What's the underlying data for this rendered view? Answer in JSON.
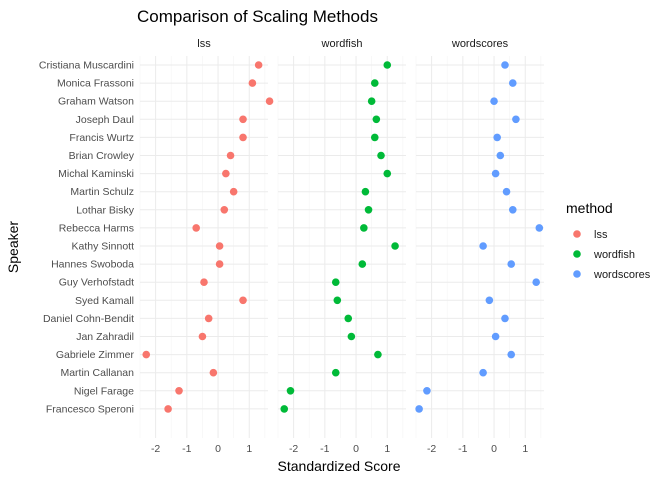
{
  "chart_data": {
    "type": "scatter",
    "title": "Comparison of Scaling Methods",
    "xlabel": "Standardized Score",
    "ylabel": "Speaker",
    "xlim": [
      -2.5,
      1.6
    ],
    "xticks": [
      -2,
      -1,
      0,
      1
    ],
    "xtick_labels": [
      "-2",
      "-1",
      "0",
      "1"
    ],
    "grid": true,
    "legend_title": "method",
    "legend_position": "right",
    "speakers": [
      "Cristiana Muscardini",
      "Monica Frassoni",
      "Graham Watson",
      "Joseph Daul",
      "Francis Wurtz",
      "Brian Crowley",
      "Michal Kaminski",
      "Martin Schulz",
      "Lothar Bisky",
      "Rebecca Harms",
      "Kathy Sinnott",
      "Hannes Swoboda",
      "Guy Verhofstadt",
      "Syed Kamall",
      "Daniel Cohn-Bendit",
      "Jan Zahradil",
      "Gabriele Zimmer",
      "Martin Callanan",
      "Nigel Farage",
      "Francesco Speroni"
    ],
    "series": [
      {
        "name": "lss",
        "color": "#F8766D",
        "values": [
          1.3,
          1.1,
          1.65,
          0.8,
          0.8,
          0.4,
          0.25,
          0.5,
          0.2,
          -0.7,
          0.05,
          0.05,
          -0.45,
          0.8,
          -0.3,
          -0.5,
          -2.3,
          -0.15,
          -1.25,
          -1.6
        ]
      },
      {
        "name": "wordfish",
        "color": "#00BA38",
        "values": [
          1.0,
          0.6,
          0.5,
          0.65,
          0.6,
          0.8,
          1.0,
          0.3,
          0.4,
          0.25,
          1.25,
          0.2,
          -0.65,
          -0.6,
          -0.25,
          -0.15,
          0.7,
          -0.65,
          -2.1,
          -2.3
        ]
      },
      {
        "name": "wordscores",
        "color": "#619CFF",
        "values": [
          0.35,
          0.6,
          0.0,
          0.7,
          0.1,
          0.2,
          0.05,
          0.4,
          0.6,
          1.45,
          -0.35,
          0.55,
          1.35,
          -0.15,
          0.35,
          0.05,
          0.55,
          -0.35,
          -2.15,
          -2.4
        ]
      }
    ]
  }
}
